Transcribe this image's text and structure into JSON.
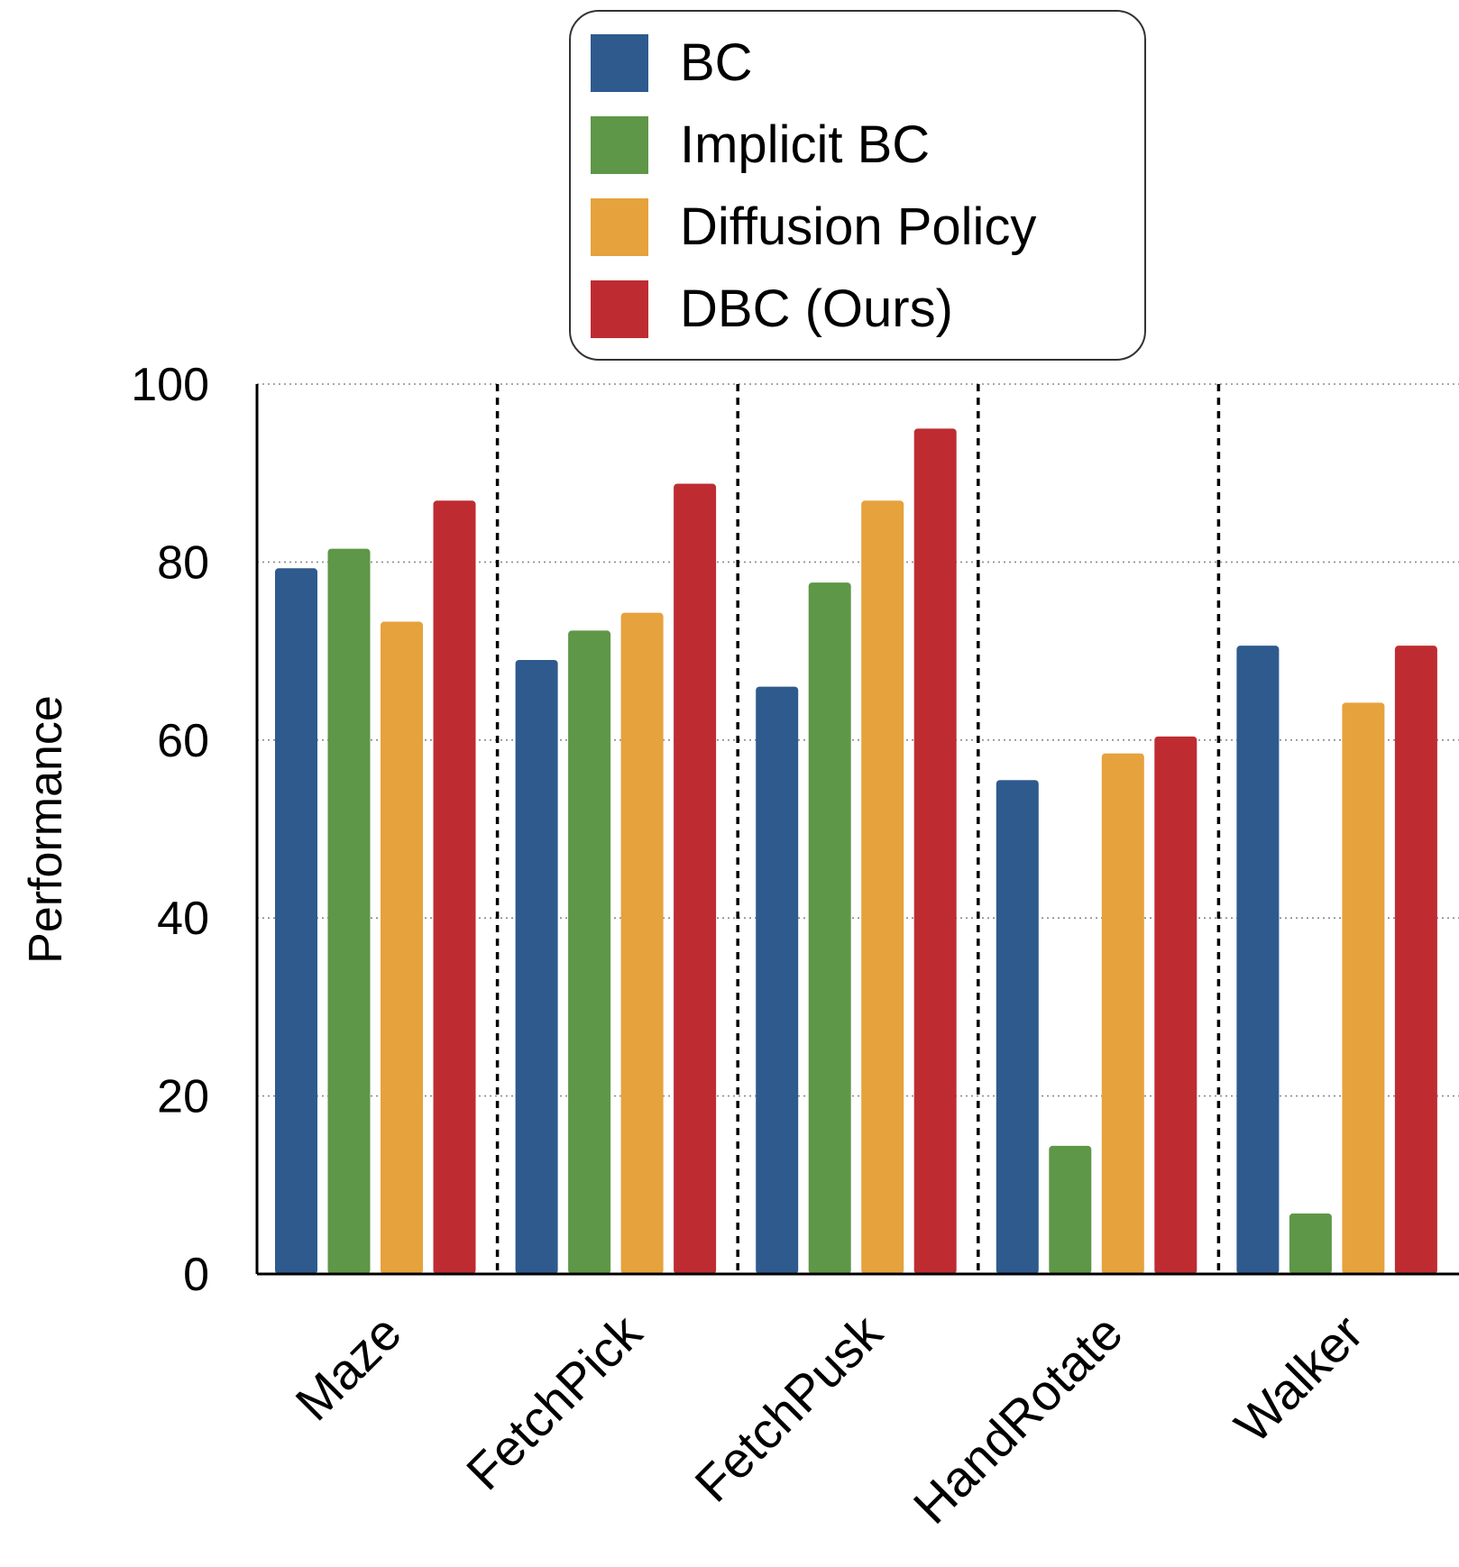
{
  "chart_data": {
    "type": "bar",
    "title": "",
    "xlabel": "",
    "ylabel": "Performance",
    "ylim": [
      0,
      100
    ],
    "yticks": [
      0,
      20,
      40,
      60,
      80,
      100
    ],
    "grid": true,
    "legend_position": "top-center",
    "categories": [
      "Maze",
      "FetchPick",
      "FetchPusk",
      "HandRotate",
      "Walker"
    ],
    "series": [
      {
        "name": "BC",
        "color": "#2e5a8e",
        "values": [
          79.3,
          69.0,
          66.0,
          55.5,
          70.6
        ]
      },
      {
        "name": "Implicit BC",
        "color": "#5e9747",
        "values": [
          81.5,
          72.3,
          77.7,
          14.4,
          6.8
        ]
      },
      {
        "name": "Diffusion Policy",
        "color": "#e6a23c",
        "values": [
          73.3,
          74.3,
          86.9,
          58.5,
          64.2
        ]
      },
      {
        "name": "DBC (Ours)",
        "color": "#be2c31",
        "values": [
          86.9,
          88.8,
          95.0,
          60.4,
          70.6
        ]
      }
    ]
  }
}
